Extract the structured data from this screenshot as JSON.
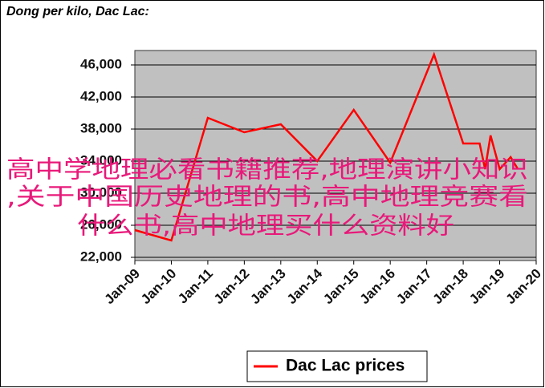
{
  "chart_data": {
    "type": "line",
    "title": "Dong per kilo, Dac Lac:",
    "x": [
      2009.0,
      2010.0,
      2011.0,
      2012.0,
      2013.0,
      2014.0,
      2015.0,
      2016.0,
      2017.2,
      2018.0,
      2018.45,
      2018.6,
      2018.75,
      2019.0,
      2019.3,
      2019.5
    ],
    "series": [
      {
        "name": "Dac Lac prices",
        "color": "#ff0000",
        "values": [
          25400,
          24100,
          39400,
          37600,
          38600,
          34000,
          40400,
          33800,
          47300,
          36200,
          36200,
          33000,
          37200,
          33000,
          34500,
          33000
        ]
      }
    ],
    "xlim": [
      2009,
      2020
    ],
    "xticks": [
      {
        "value": 2009,
        "label": "Jan-09"
      },
      {
        "value": 2010,
        "label": "Jan-10"
      },
      {
        "value": 2011,
        "label": "Jan-11"
      },
      {
        "value": 2012,
        "label": "Jan-12"
      },
      {
        "value": 2013,
        "label": "Jan-13"
      },
      {
        "value": 2014,
        "label": "Jan-14"
      },
      {
        "value": 2015,
        "label": "Jan-15"
      },
      {
        "value": 2016,
        "label": "Jan-16"
      },
      {
        "value": 2017,
        "label": "Jan-17"
      },
      {
        "value": 2018,
        "label": "Jan-18"
      },
      {
        "value": 2019,
        "label": "Jan-19"
      },
      {
        "value": 2020,
        "label": "Jan-20"
      }
    ],
    "ylim": [
      21600,
      47800
    ],
    "yticks": [
      {
        "value": 22000,
        "label": "22,000"
      },
      {
        "value": 26000,
        "label": "26,000"
      },
      {
        "value": 30000,
        "label": "30,000"
      },
      {
        "value": 34000,
        "label": "34,000"
      },
      {
        "value": 38000,
        "label": "38,000"
      },
      {
        "value": 42000,
        "label": "42,000"
      },
      {
        "value": 46000,
        "label": "46,000"
      }
    ],
    "grid": true,
    "legend": "bottom",
    "overlay_text": [
      "高中学地理必看书籍推荐,地理演讲小知识",
      ",关于中国历史地理的书,高中地理竞赛看",
      "什么书,高中地理买什么资料好"
    ]
  }
}
